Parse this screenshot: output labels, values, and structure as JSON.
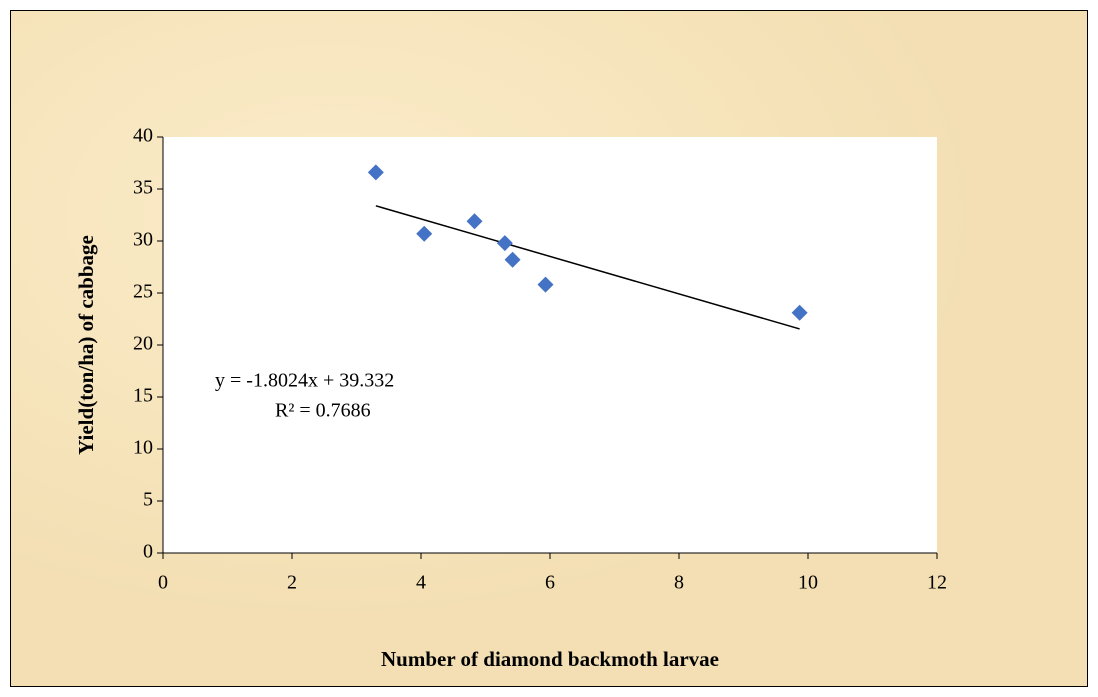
{
  "chart_data": {
    "type": "scatter",
    "x_label": "Number of diamond backmoth larvae",
    "y_label": "Yield(ton/ha) of cabbage",
    "x": [
      3.3,
      4.05,
      4.83,
      5.3,
      5.42,
      5.93,
      9.87
    ],
    "values": [
      36.6,
      30.7,
      31.9,
      29.8,
      28.2,
      25.8,
      23.1
    ],
    "color": "#4472c4",
    "xlim": [
      0,
      12
    ],
    "xticks": [
      0,
      2,
      4,
      6,
      8,
      10,
      12
    ],
    "ylim": [
      0,
      40
    ],
    "yticks": [
      0,
      5,
      10,
      15,
      20,
      25,
      30,
      35,
      40
    ],
    "grid": false,
    "trendline": {
      "slope": -1.8024,
      "intercept": 39.332,
      "equation": "y = -1.8024x + 39.332",
      "r_squared": "R² = 0.7686"
    }
  }
}
